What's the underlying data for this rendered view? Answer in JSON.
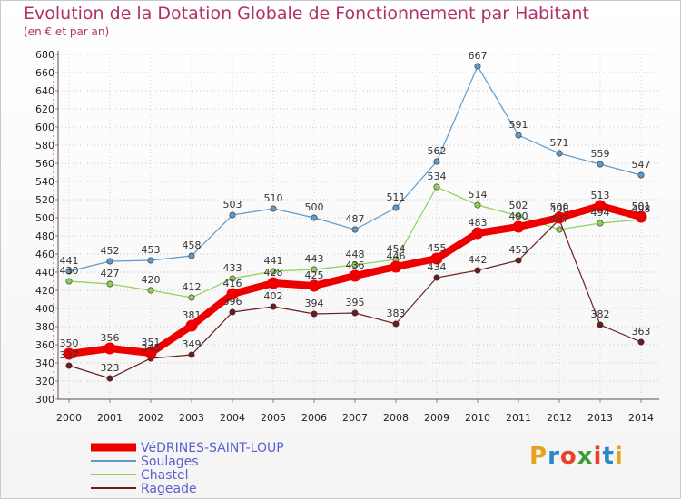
{
  "header": {
    "title": "Evolution de la Dotation Globale de Fonctionnement par Habitant",
    "subtitle": "(en € et par an)"
  },
  "logo": {
    "text": "Proxiti",
    "colors": [
      "#e8a11e",
      "#2a88c8",
      "#e8432a",
      "#3c9c3c",
      "#e8432a",
      "#2a88c8",
      "#e8a11e"
    ]
  },
  "chart_data": {
    "type": "line",
    "title": "Evolution de la Dotation Globale de Fonctionnement par Habitant",
    "subtitle": "(en € et par an)",
    "xlabel": "",
    "ylabel": "",
    "ylim": [
      300,
      680
    ],
    "ytick_step": 20,
    "grid": "horizontal-dotted",
    "legend_position": "bottom-left",
    "categories": [
      "2000",
      "2001",
      "2002",
      "2003",
      "2004",
      "2005",
      "2006",
      "2007",
      "2008",
      "2009",
      "2010",
      "2011",
      "2012",
      "2013",
      "2014"
    ],
    "series": [
      {
        "name": "VéDRINES-SAINT-LOUP",
        "color": "#ee0000",
        "emphasis": true,
        "values": [
          350,
          356,
          351,
          381,
          416,
          428,
          425,
          436,
          446,
          455,
          483,
          490,
          500,
          513,
          501
        ]
      },
      {
        "name": "Soulages",
        "color": "#5d9bcd",
        "emphasis": false,
        "values": [
          441,
          452,
          453,
          458,
          503,
          510,
          500,
          487,
          511,
          562,
          667,
          591,
          571,
          559,
          547
        ]
      },
      {
        "name": "Chastel",
        "color": "#8ed05a",
        "emphasis": false,
        "values": [
          430,
          427,
          420,
          412,
          433,
          441,
          443,
          448,
          454,
          534,
          514,
          502,
          487,
          494,
          498
        ]
      },
      {
        "name": "Rageade",
        "color": "#6b1d1d",
        "emphasis": false,
        "values": [
          337,
          323,
          345,
          349,
          396,
          402,
          394,
          395,
          383,
          434,
          442,
          453,
          498,
          382,
          363
        ]
      }
    ],
    "data_labels": [
      {
        "series": "VéDRINES-SAINT-LOUP",
        "texts": [
          "350",
          "356",
          "351",
          "381",
          "416",
          "428",
          "425",
          "436",
          "446",
          "455",
          "483",
          "490",
          "500",
          "513",
          "501"
        ]
      },
      {
        "series": "Soulages",
        "texts": [
          "441",
          "452",
          "453",
          "458",
          "503",
          "510",
          "500",
          "487",
          "511",
          "562",
          "667",
          "591",
          "571",
          "559",
          "547"
        ]
      },
      {
        "series": "Chastel",
        "texts": [
          "430",
          "427",
          "420",
          "412",
          "433",
          "441",
          "443",
          "448",
          "454",
          "534",
          "514",
          "502",
          "487",
          "494",
          "498"
        ]
      },
      {
        "series": "Rageade",
        "texts": [
          "337",
          "323",
          "345",
          "349",
          "396",
          "402",
          "394",
          "395",
          "383",
          "434",
          "442",
          "453",
          "498",
          "382",
          "363"
        ]
      }
    ]
  }
}
